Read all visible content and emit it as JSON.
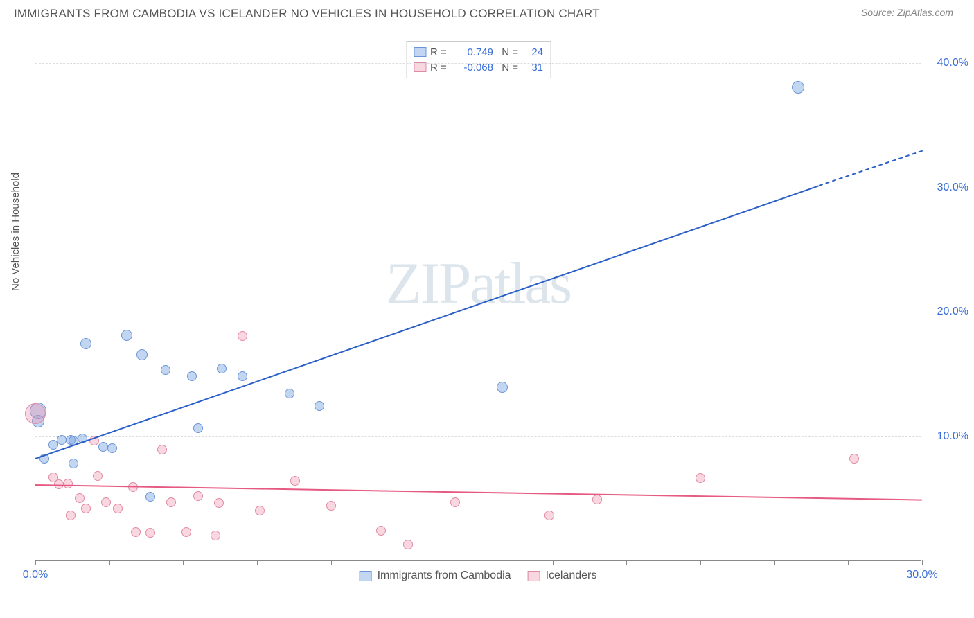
{
  "title": "IMMIGRANTS FROM CAMBODIA VS ICELANDER NO VEHICLES IN HOUSEHOLD CORRELATION CHART",
  "source": "Source: ZipAtlas.com",
  "y_axis_label": "No Vehicles in Household",
  "watermark": "ZIPatlas",
  "chart": {
    "type": "scatter",
    "xlim": [
      0,
      30
    ],
    "ylim": [
      0,
      42
    ],
    "x_ticks": [
      0,
      2.5,
      5,
      7.5,
      10,
      12.5,
      15,
      17.5,
      20,
      22.5,
      25,
      27.5,
      30
    ],
    "x_tick_labels": {
      "0": "0.0%",
      "30": "30.0%"
    },
    "y_ticks": [
      10,
      20,
      30,
      40
    ],
    "y_tick_labels": {
      "10": "10.0%",
      "20": "20.0%",
      "30": "30.0%",
      "40": "40.0%"
    },
    "grid_color": "#dddddd",
    "background_color": "#ffffff",
    "axis_color": "#888888",
    "tick_label_color": "#3a6fd8",
    "axis_label_color": "#555555"
  },
  "series": [
    {
      "name": "Immigrants from Cambodia",
      "fill_color": "rgba(120,165,225,0.45)",
      "stroke_color": "#6a95d8",
      "trend_color": "#2a5fc8",
      "trend": {
        "x1": 0,
        "y1": 8.3,
        "x2": 26.5,
        "y2": 30.2,
        "x2_dash": 30,
        "y2_dash": 33.0
      },
      "R": "0.749",
      "N": "24",
      "points": [
        {
          "x": 0.1,
          "y": 12.0,
          "r": 12
        },
        {
          "x": 0.1,
          "y": 11.2,
          "r": 9
        },
        {
          "x": 0.3,
          "y": 8.2,
          "r": 7
        },
        {
          "x": 0.6,
          "y": 9.3,
          "r": 7
        },
        {
          "x": 0.9,
          "y": 9.7,
          "r": 7
        },
        {
          "x": 1.2,
          "y": 9.7,
          "r": 7
        },
        {
          "x": 1.3,
          "y": 9.6,
          "r": 7
        },
        {
          "x": 1.3,
          "y": 7.8,
          "r": 7
        },
        {
          "x": 1.6,
          "y": 9.8,
          "r": 7
        },
        {
          "x": 1.7,
          "y": 17.4,
          "r": 8
        },
        {
          "x": 2.3,
          "y": 9.1,
          "r": 7
        },
        {
          "x": 2.6,
          "y": 9.0,
          "r": 7
        },
        {
          "x": 3.1,
          "y": 18.1,
          "r": 8
        },
        {
          "x": 3.6,
          "y": 16.5,
          "r": 8
        },
        {
          "x": 3.9,
          "y": 5.1,
          "r": 7
        },
        {
          "x": 4.4,
          "y": 15.3,
          "r": 7
        },
        {
          "x": 5.3,
          "y": 14.8,
          "r": 7
        },
        {
          "x": 5.5,
          "y": 10.6,
          "r": 7
        },
        {
          "x": 6.3,
          "y": 15.4,
          "r": 7
        },
        {
          "x": 7.0,
          "y": 14.8,
          "r": 7
        },
        {
          "x": 8.6,
          "y": 13.4,
          "r": 7
        },
        {
          "x": 9.6,
          "y": 12.4,
          "r": 7
        },
        {
          "x": 15.8,
          "y": 13.9,
          "r": 8
        },
        {
          "x": 25.8,
          "y": 38.0,
          "r": 9
        }
      ]
    },
    {
      "name": "Icelanders",
      "fill_color": "rgba(240,150,175,0.38)",
      "stroke_color": "#e08aa5",
      "trend_color": "#e65a82",
      "trend": {
        "x1": 0,
        "y1": 6.2,
        "x2": 30,
        "y2": 5.0
      },
      "R": "-0.068",
      "N": "31",
      "points": [
        {
          "x": 0.0,
          "y": 11.8,
          "r": 15
        },
        {
          "x": 0.6,
          "y": 6.7,
          "r": 7
        },
        {
          "x": 0.8,
          "y": 6.1,
          "r": 7
        },
        {
          "x": 1.1,
          "y": 6.2,
          "r": 7
        },
        {
          "x": 1.2,
          "y": 3.6,
          "r": 7
        },
        {
          "x": 1.7,
          "y": 4.2,
          "r": 7
        },
        {
          "x": 2.0,
          "y": 9.6,
          "r": 7
        },
        {
          "x": 2.1,
          "y": 6.8,
          "r": 7
        },
        {
          "x": 2.4,
          "y": 4.7,
          "r": 7
        },
        {
          "x": 2.8,
          "y": 4.2,
          "r": 7
        },
        {
          "x": 3.3,
          "y": 5.9,
          "r": 7
        },
        {
          "x": 3.4,
          "y": 2.3,
          "r": 7
        },
        {
          "x": 3.9,
          "y": 2.2,
          "r": 7
        },
        {
          "x": 4.3,
          "y": 8.9,
          "r": 7
        },
        {
          "x": 4.6,
          "y": 4.7,
          "r": 7
        },
        {
          "x": 5.1,
          "y": 2.3,
          "r": 7
        },
        {
          "x": 5.5,
          "y": 5.2,
          "r": 7
        },
        {
          "x": 6.1,
          "y": 2.0,
          "r": 7
        },
        {
          "x": 6.2,
          "y": 4.6,
          "r": 7
        },
        {
          "x": 7.0,
          "y": 18.0,
          "r": 7
        },
        {
          "x": 7.6,
          "y": 4.0,
          "r": 7
        },
        {
          "x": 8.8,
          "y": 6.4,
          "r": 7
        },
        {
          "x": 10.0,
          "y": 4.4,
          "r": 7
        },
        {
          "x": 11.7,
          "y": 2.4,
          "r": 7
        },
        {
          "x": 12.6,
          "y": 1.3,
          "r": 7
        },
        {
          "x": 14.2,
          "y": 4.7,
          "r": 7
        },
        {
          "x": 17.4,
          "y": 3.6,
          "r": 7
        },
        {
          "x": 22.5,
          "y": 6.6,
          "r": 7
        },
        {
          "x": 27.7,
          "y": 8.2,
          "r": 7
        },
        {
          "x": 19.0,
          "y": 4.9,
          "r": 7
        },
        {
          "x": 1.5,
          "y": 5.0,
          "r": 7
        }
      ]
    }
  ],
  "legend_bottom": [
    {
      "label": "Immigrants from Cambodia",
      "fill": "rgba(120,165,225,0.45)",
      "stroke": "#6a95d8"
    },
    {
      "label": "Icelanders",
      "fill": "rgba(240,150,175,0.38)",
      "stroke": "#e08aa5"
    }
  ]
}
